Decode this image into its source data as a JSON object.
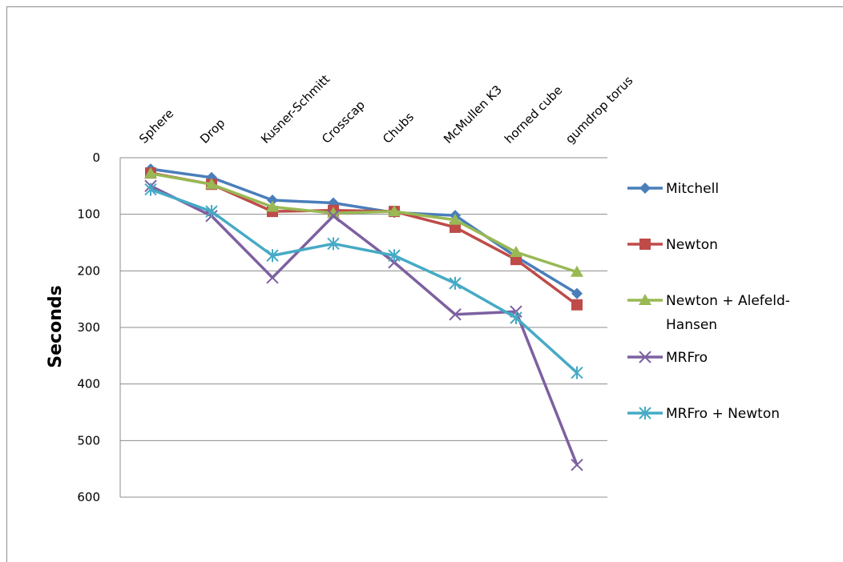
{
  "chart_data": {
    "type": "line",
    "categories": [
      "Sphere",
      "Drop",
      "Kusner-Schmitt",
      "Crosscap",
      "Chubs",
      "McMullen K3",
      "horned cube",
      "gumdrop torus"
    ],
    "ylabel": "Seconds",
    "ylim": [
      0,
      600
    ],
    "yticks": [
      0,
      100,
      200,
      300,
      400,
      500,
      600
    ],
    "y_inverted": true,
    "grid": true,
    "legend_position": "right",
    "series": [
      {
        "name": "Mitchell",
        "color": "#4A7EBB",
        "marker": "diamond",
        "values": [
          20,
          35,
          75,
          80,
          97,
          102,
          175,
          240
        ]
      },
      {
        "name": "Newton",
        "color": "#BE4B48",
        "marker": "square",
        "values": [
          27,
          47,
          95,
          93,
          95,
          123,
          180,
          260
        ]
      },
      {
        "name": "Newton + Alefeld-Hansen",
        "legend_lines": [
          "Newton + Alefeld-",
          "Hansen"
        ],
        "color": "#98B954",
        "marker": "triangle",
        "values": [
          28,
          47,
          87,
          98,
          95,
          110,
          167,
          202
        ]
      },
      {
        "name": "MRFro",
        "color": "#7D60A0",
        "marker": "x",
        "values": [
          50,
          103,
          212,
          103,
          185,
          277,
          272,
          543
        ]
      },
      {
        "name": "MRFro + Newton",
        "color": "#46AAC5",
        "marker": "star",
        "values": [
          56,
          95,
          173,
          152,
          173,
          222,
          283,
          380
        ]
      }
    ]
  }
}
